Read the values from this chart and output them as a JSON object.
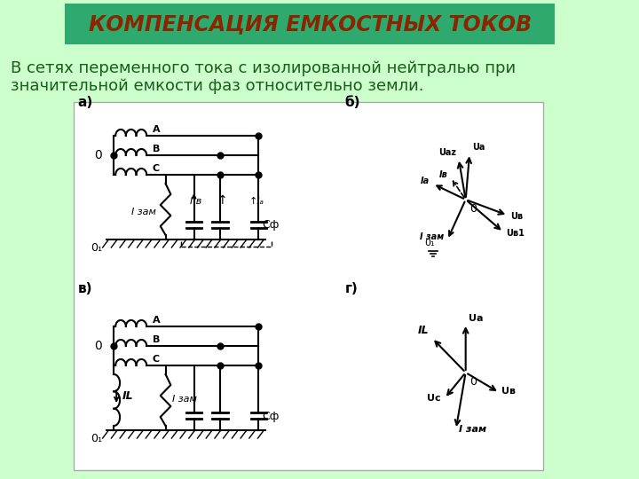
{
  "title": "КОМПЕНСАЦИЯ ЕМКОСТНЫХ ТОКОВ",
  "title_color": "#8B2500",
  "title_bg_color": "#2EAA6E",
  "page_bg_color": "#CCFFCC",
  "inner_bg_color": "#FFFFFF",
  "subtitle_line1": "В сетях переменного тока с изолированной нейтралью при",
  "subtitle_line2": "значительной емкости фаз относительно земли.",
  "subtitle_color": "#1a5c1a",
  "subtitle_fontsize": 13,
  "title_fontsize": 17
}
